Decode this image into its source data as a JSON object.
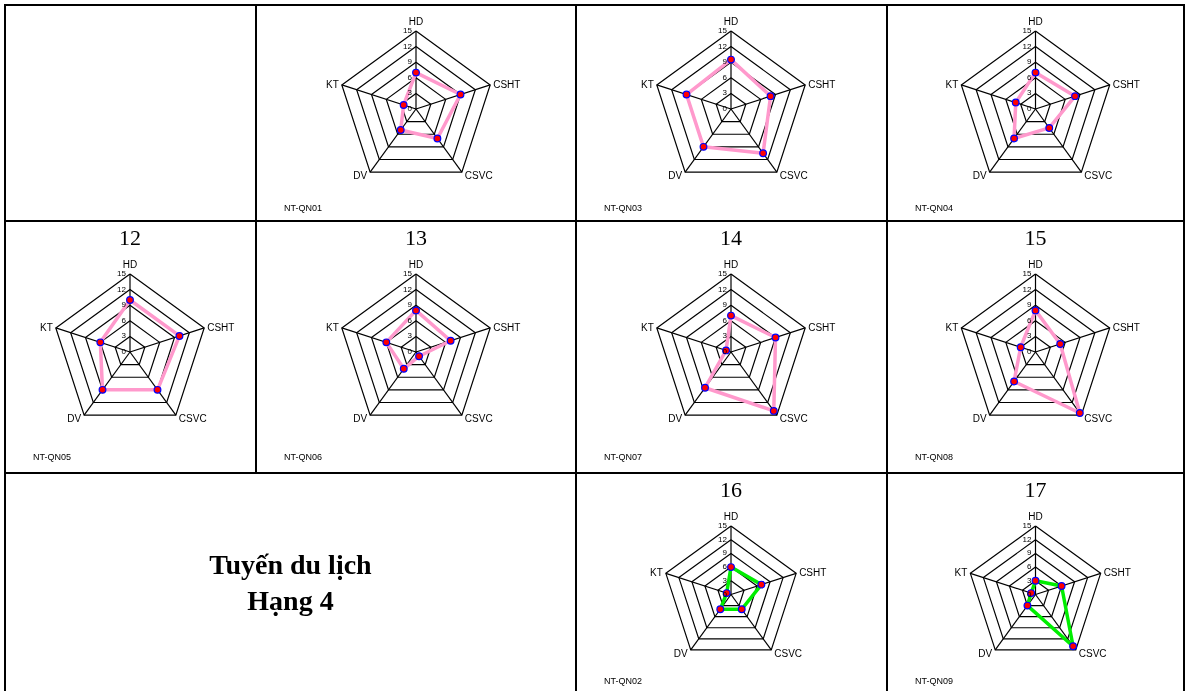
{
  "chart_data": [
    {
      "type": "radar",
      "categories": [
        "HD",
        "CSHT",
        "CSVC",
        "DV",
        "KT"
      ],
      "series": [
        {
          "color": "#ff99cc",
          "values": [
            7,
            9,
            7,
            5,
            2.5
          ]
        }
      ],
      "ylim": [
        0,
        15
      ],
      "yticks": [
        0,
        3,
        6,
        9,
        12,
        15
      ],
      "grid": true,
      "marker": "circle",
      "annotations": [
        "NT-QN01"
      ]
    },
    {
      "type": "radar",
      "categories": [
        "HD",
        "CSHT",
        "CSVC",
        "DV",
        "KT"
      ],
      "series": [
        {
          "color": "#ff99cc",
          "values": [
            9.5,
            8,
            10.5,
            9,
            9
          ]
        }
      ],
      "ylim": [
        0,
        15
      ],
      "yticks": [
        0,
        3,
        6,
        9,
        12,
        15
      ],
      "grid": true,
      "marker": "circle",
      "annotations": [
        "NT-QN03"
      ]
    },
    {
      "type": "radar",
      "categories": [
        "HD",
        "CSHT",
        "CSVC",
        "DV",
        "KT"
      ],
      "series": [
        {
          "color": "#ff99cc",
          "values": [
            7,
            8,
            4.5,
            7,
            4
          ]
        }
      ],
      "ylim": [
        0,
        15
      ],
      "yticks": [
        0,
        3,
        6,
        9,
        12,
        15
      ],
      "grid": true,
      "marker": "circle",
      "annotations": [
        "NT-QN04"
      ]
    },
    {
      "type": "radar",
      "title": "12",
      "categories": [
        "HD",
        "CSHT",
        "CSVC",
        "DV",
        "KT"
      ],
      "series": [
        {
          "color": "#ff99cc",
          "values": [
            10,
            10,
            9,
            9,
            6
          ]
        }
      ],
      "ylim": [
        0,
        15
      ],
      "yticks": [
        0,
        3,
        6,
        9,
        12,
        15
      ],
      "grid": true,
      "marker": "circle",
      "annotations": [
        "NT-QN05"
      ]
    },
    {
      "type": "radar",
      "title": "13",
      "categories": [
        "HD",
        "CSHT",
        "CSVC",
        "DV",
        "KT"
      ],
      "series": [
        {
          "color": "#ff99cc",
          "values": [
            8,
            7,
            1,
            4,
            6
          ]
        }
      ],
      "ylim": [
        0,
        15
      ],
      "yticks": [
        0,
        3,
        6,
        9,
        12,
        15
      ],
      "grid": true,
      "marker": "circle",
      "annotations": [
        "NT-QN06"
      ]
    },
    {
      "type": "radar",
      "title": "14",
      "categories": [
        "HD",
        "CSHT",
        "CSVC",
        "DV",
        "KT"
      ],
      "series": [
        {
          "color": "#ff99cc",
          "values": [
            7,
            9,
            14,
            8.5,
            1
          ]
        }
      ],
      "ylim": [
        0,
        15
      ],
      "yticks": [
        0,
        3,
        6,
        9,
        12,
        15
      ],
      "grid": true,
      "marker": "circle",
      "annotations": [
        "NT-QN07"
      ]
    },
    {
      "type": "radar",
      "title": "15",
      "categories": [
        "HD",
        "CSHT",
        "CSVC",
        "DV",
        "KT"
      ],
      "series": [
        {
          "color": "#ff99cc",
          "values": [
            8,
            5,
            14.5,
            7,
            3
          ]
        }
      ],
      "ylim": [
        0,
        15
      ],
      "yticks": [
        0,
        3,
        6,
        9,
        12,
        15
      ],
      "grid": true,
      "marker": "circle",
      "annotations": [
        "NT-QN08"
      ]
    },
    {
      "type": "other",
      "title": "Tuyến du lịch Hạng 4"
    },
    {
      "type": "radar",
      "title": "16",
      "categories": [
        "HD",
        "CSHT",
        "CSVC",
        "DV",
        "KT"
      ],
      "series": [
        {
          "color": "#00ee00",
          "values": [
            6,
            7,
            4,
            4,
            1
          ]
        }
      ],
      "ylim": [
        0,
        15
      ],
      "yticks": [
        0,
        3,
        6,
        9,
        12,
        15
      ],
      "grid": true,
      "marker": "circle",
      "annotations": [
        "NT-QN02"
      ]
    },
    {
      "type": "radar",
      "title": "17",
      "categories": [
        "HD",
        "CSHT",
        "CSVC",
        "DV",
        "KT"
      ],
      "series": [
        {
          "color": "#00ee00",
          "values": [
            3,
            6,
            14,
            3,
            1
          ]
        }
      ],
      "ylim": [
        0,
        15
      ],
      "yticks": [
        0,
        3,
        6,
        9,
        12,
        15
      ],
      "grid": true,
      "marker": "circle",
      "annotations": [
        "NT-QN09"
      ]
    }
  ]
}
